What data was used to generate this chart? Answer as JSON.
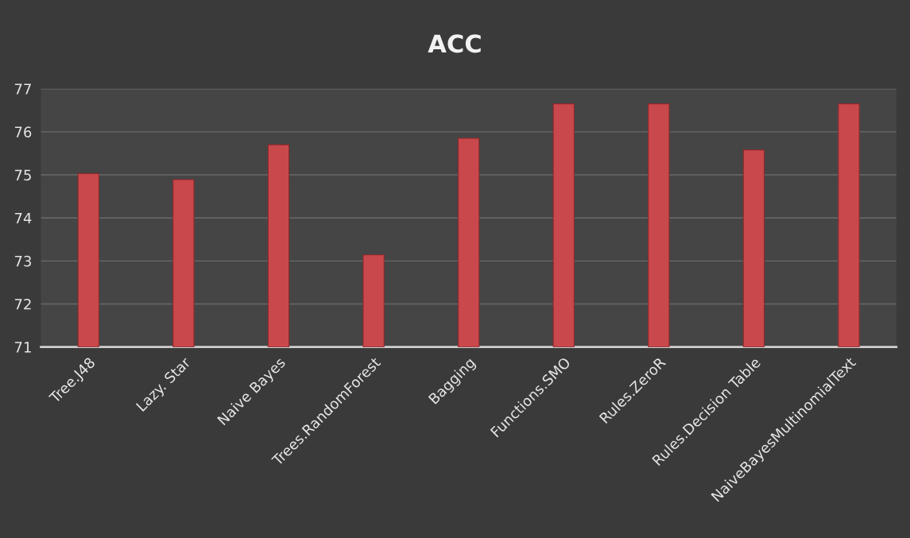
{
  "chart_data": {
    "type": "bar",
    "title": "ACC",
    "categories": [
      "Tree.J48",
      "Lazy. Star",
      "Naive Bayes",
      "Trees.RandomForest",
      "Bagging",
      "Functions.SMO",
      "Rules.ZeroR",
      "Rules.Decision Table",
      "NaiveBayesMultinomialText"
    ],
    "values": [
      75.03,
      74.89,
      75.7,
      73.14,
      75.85,
      76.65,
      76.65,
      75.58,
      76.65
    ],
    "color": "#c9484b",
    "ylim": [
      71,
      77
    ],
    "yticks": [
      71,
      72,
      73,
      74,
      75,
      76,
      77
    ],
    "grid": "y",
    "legend": false
  }
}
